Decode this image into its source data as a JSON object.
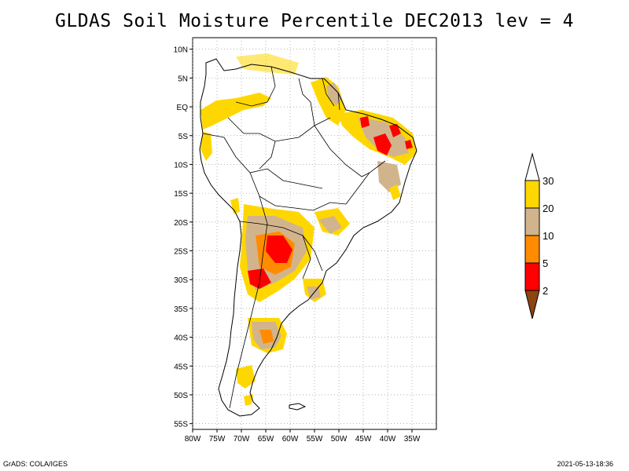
{
  "title": "GLDAS Soil Moisture Percentile DEC2013 lev = 4",
  "map": {
    "lon_range": [
      -80,
      -30
    ],
    "lat_range": [
      -56,
      12
    ],
    "lat_ticks": [
      "10N",
      "5N",
      "EQ",
      "5S",
      "10S",
      "15S",
      "20S",
      "25S",
      "30S",
      "35S",
      "40S",
      "45S",
      "50S",
      "55S"
    ],
    "lon_ticks": [
      "80W",
      "75W",
      "70W",
      "65W",
      "60W",
      "55W",
      "50W",
      "45W",
      "40W",
      "35W"
    ],
    "grid": "dotted"
  },
  "colorbar": {
    "labels": [
      "30",
      "20",
      "10",
      "5",
      "2"
    ],
    "colors": {
      "above_30": "#ffffff",
      "20_30": "#ffd700",
      "10_20": "#d2b48c",
      "5_10": "#ff8c00",
      "2_5": "#ff0000",
      "below_2": "#8b4513"
    }
  },
  "footer": {
    "left": "GrADS: COLA/IGES",
    "right": "2021-05-13-18:36"
  }
}
